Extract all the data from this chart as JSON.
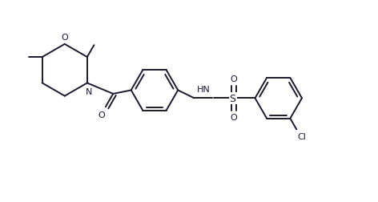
{
  "bg_color": "#ffffff",
  "line_color": "#1a1a2e",
  "figsize": [
    4.72,
    2.53
  ],
  "dpi": 100,
  "lw": 1.4,
  "xlim": [
    0,
    10
  ],
  "ylim": [
    0,
    5.5
  ]
}
